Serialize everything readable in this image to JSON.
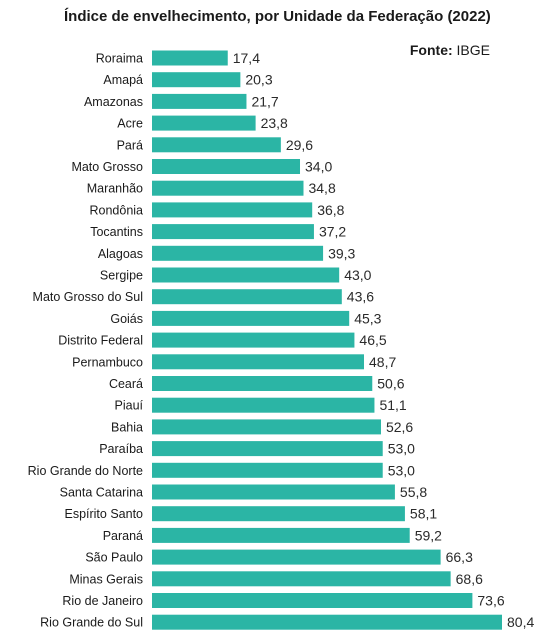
{
  "chart_data": {
    "type": "bar",
    "orientation": "horizontal",
    "title": "Índice de envelhecimento, por Unidade da Federação (2022)",
    "source_label": "Fonte:",
    "source_value": "IBGE",
    "bar_color": "#2bb5a5",
    "grid": false,
    "categories": [
      "Roraima",
      "Amapá",
      "Amazonas",
      "Acre",
      "Pará",
      "Mato Grosso",
      "Maranhão",
      "Rondônia",
      "Tocantins",
      "Alagoas",
      "Sergipe",
      "Mato Grosso do Sul",
      "Goiás",
      "Distrito Federal",
      "Pernambuco",
      "Ceará",
      "Piauí",
      "Bahia",
      "Paraíba",
      "Rio Grande do Norte",
      "Santa Catarina",
      "Espírito Santo",
      "Paraná",
      "São Paulo",
      "Minas Gerais",
      "Rio de Janeiro",
      "Rio Grande do Sul"
    ],
    "values": [
      17.4,
      20.3,
      21.7,
      23.8,
      29.6,
      34.0,
      34.8,
      36.8,
      37.2,
      39.3,
      43.0,
      43.6,
      45.3,
      46.5,
      48.7,
      50.6,
      51.1,
      52.6,
      53.0,
      53.0,
      55.8,
      58.1,
      59.2,
      66.3,
      68.6,
      73.6,
      80.4
    ],
    "value_labels": [
      "17,4",
      "20,3",
      "21,7",
      "23,8",
      "29,6",
      "34,0",
      "34,8",
      "36,8",
      "37,2",
      "39,3",
      "43,0",
      "43,6",
      "45,3",
      "46,5",
      "48,7",
      "50,6",
      "51,1",
      "52,6",
      "53,0",
      "53,0",
      "55,8",
      "58,1",
      "59,2",
      "66,3",
      "68,6",
      "73,6",
      "80,4"
    ],
    "xlim": [
      0,
      80.4
    ]
  }
}
